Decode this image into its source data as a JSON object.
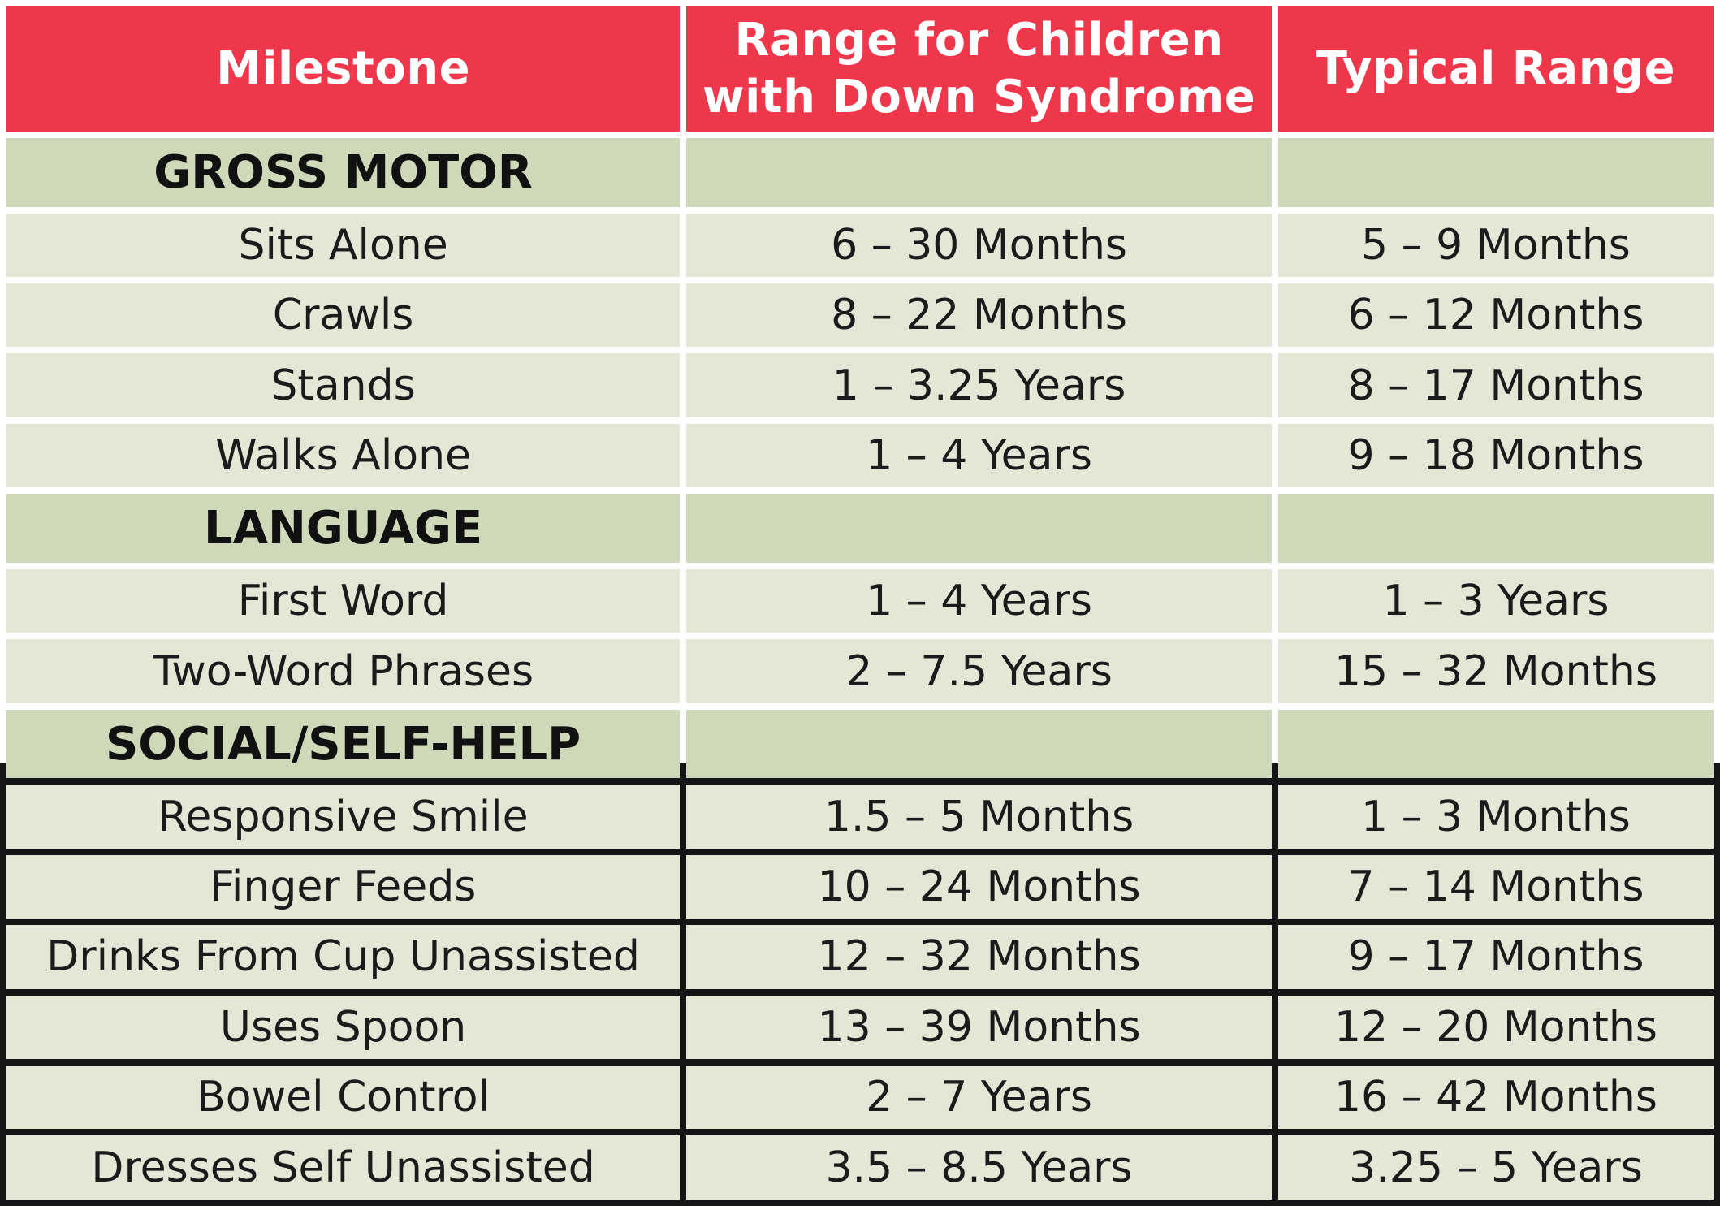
{
  "chart_data": {
    "type": "table",
    "columns": [
      "Milestone",
      "Range for Children with Down Syndrome",
      "Typical Range"
    ],
    "header_lines": [
      [
        "Milestone"
      ],
      [
        "Range for Children",
        "with Down Syndrome"
      ],
      [
        "Typical Range"
      ]
    ],
    "sections": [
      {
        "title": "GROSS MOTOR",
        "rows": [
          [
            "Sits Alone",
            "6 – 30 Months",
            "5 – 9 Months"
          ],
          [
            "Crawls",
            "8 – 22 Months",
            "6 – 12 Months"
          ],
          [
            "Stands",
            "1 – 3.25 Years",
            "8 – 17 Months"
          ],
          [
            "Walks Alone",
            "1 – 4 Years",
            "9 – 18 Months"
          ]
        ]
      },
      {
        "title": "LANGUAGE",
        "rows": [
          [
            "First Word",
            "1 – 4 Years",
            "1 – 3 Years"
          ],
          [
            "Two-Word Phrases",
            "2 – 7.5 Years",
            "15 – 32 Months"
          ]
        ]
      },
      {
        "title": "SOCIAL/SELF-HELP",
        "rows": [
          [
            "Responsive Smile",
            "1.5 – 5 Months",
            "1 – 3 Months"
          ],
          [
            "Finger Feeds",
            "10 – 24 Months",
            "7 – 14 Months"
          ],
          [
            "Drinks From Cup Unassisted",
            "12 – 32 Months",
            "9 – 17 Months"
          ],
          [
            "Uses Spoon",
            "13 – 39 Months",
            "12 – 20 Months"
          ],
          [
            "Bowel Control",
            "2 – 7 Years",
            "16 – 42 Months"
          ],
          [
            "Dresses Self Unassisted",
            "3.5 – 8.5 Years",
            "3.25 – 5 Years"
          ]
        ]
      }
    ]
  },
  "colors": {
    "header_background": "#ef374b",
    "header_text": "#ffffff",
    "section_background": "#cfd9b9",
    "row_background": "#e4e7d6"
  }
}
